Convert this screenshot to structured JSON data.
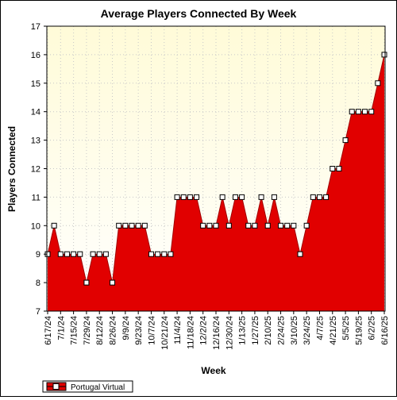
{
  "chart_data": {
    "type": "area",
    "title": "Average Players Connected By Week",
    "xlabel": "Week",
    "ylabel": "Players Connected",
    "ylim": [
      7,
      17
    ],
    "yticks": [
      7,
      8,
      9,
      10,
      11,
      12,
      13,
      14,
      15,
      16,
      17
    ],
    "x_tick_labels": [
      "6/17/24",
      "7/1/24",
      "7/15/24",
      "7/29/24",
      "8/12/24",
      "8/26/24",
      "9/9/24",
      "9/23/24",
      "10/7/24",
      "10/21/24",
      "11/4/24",
      "11/18/24",
      "12/2/24",
      "12/16/24",
      "12/30/24",
      "1/13/25",
      "1/27/25",
      "2/10/25",
      "2/24/25",
      "3/10/25",
      "3/24/25",
      "4/7/25",
      "4/21/25",
      "5/5/25",
      "5/19/25",
      "6/2/25",
      "6/16/25"
    ],
    "grid": true,
    "legend_position": "bottom-left",
    "colors": {
      "plot_bg_top": "#fffbd8",
      "plot_bg_bottom": "#ffffff",
      "area": "#e10000",
      "marker_fill": "#ffffff",
      "marker_stroke": "#000000"
    },
    "x": [
      "6/17/24",
      "6/24/24",
      "7/1/24",
      "7/8/24",
      "7/15/24",
      "7/22/24",
      "7/29/24",
      "8/5/24",
      "8/12/24",
      "8/19/24",
      "8/26/24",
      "9/2/24",
      "9/9/24",
      "9/16/24",
      "9/23/24",
      "9/30/24",
      "10/7/24",
      "10/14/24",
      "10/21/24",
      "10/28/24",
      "11/4/24",
      "11/11/24",
      "11/18/24",
      "11/25/24",
      "12/2/24",
      "12/9/24",
      "12/16/24",
      "12/23/24",
      "12/30/24",
      "1/6/25",
      "1/13/25",
      "1/20/25",
      "1/27/25",
      "2/3/25",
      "2/10/25",
      "2/17/25",
      "2/24/25",
      "3/3/25",
      "3/10/25",
      "3/17/25",
      "3/24/25",
      "3/31/25",
      "4/7/25",
      "4/14/25",
      "4/21/25",
      "4/28/25",
      "5/5/25",
      "5/12/25",
      "5/19/25",
      "5/26/25",
      "6/2/25",
      "6/9/25",
      "6/16/25"
    ],
    "series": [
      {
        "name": "Portugal Virtual",
        "values": [
          9,
          10,
          9,
          9,
          9,
          9,
          8,
          9,
          9,
          9,
          8,
          10,
          10,
          10,
          10,
          10,
          9,
          9,
          9,
          9,
          11,
          11,
          11,
          11,
          10,
          10,
          10,
          11,
          10,
          11,
          11,
          10,
          10,
          11,
          10,
          11,
          10,
          10,
          10,
          9,
          10,
          11,
          11,
          11,
          12,
          12,
          13,
          14,
          14,
          14,
          14,
          15,
          16
        ]
      }
    ]
  }
}
